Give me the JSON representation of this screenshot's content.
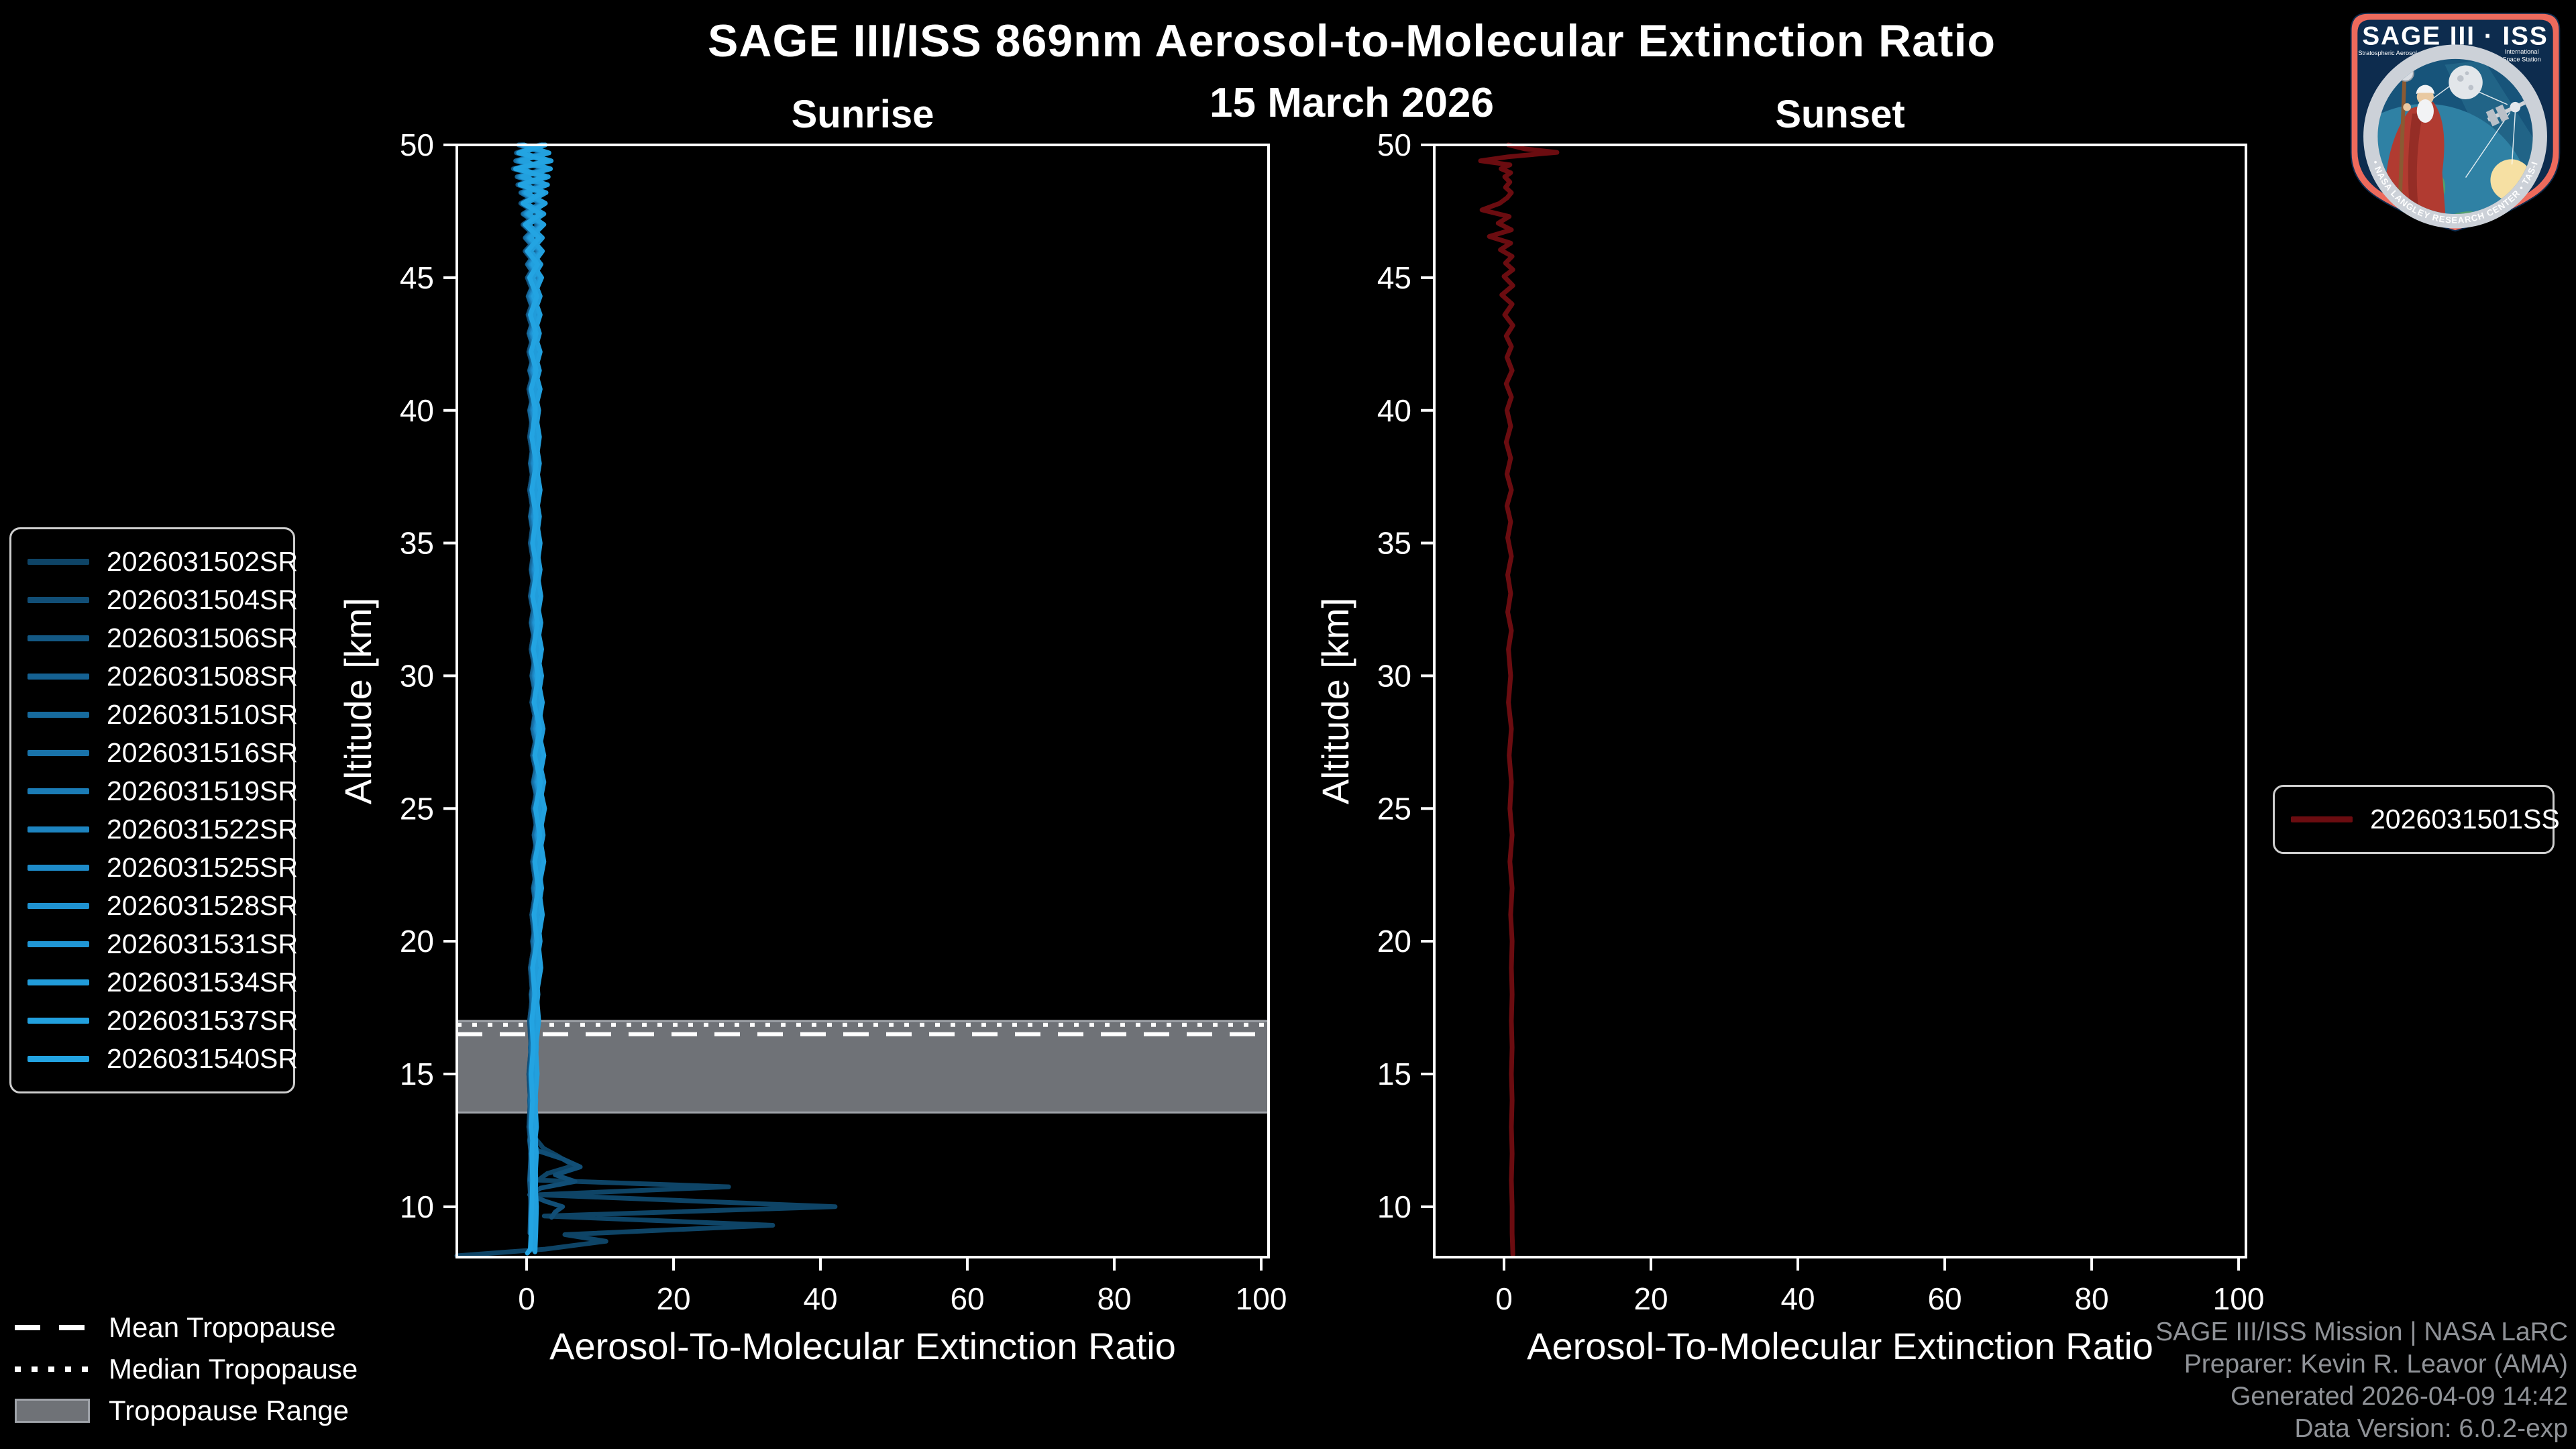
{
  "title": "SAGE III/ISS 869nm Aerosol-to-Molecular Extinction Ratio",
  "subtitle": "15 March 2026",
  "colors": {
    "background": "#000000",
    "axis": "#ffffff",
    "tropopause_band": "#6f7277",
    "tropopause_band_edge": "#9fa3a9",
    "sunrise_dark": "#0e4466",
    "sunrise_bright": "#23a4e2",
    "sunset_line": "#6b0c10",
    "muted_text": "#8f9297"
  },
  "tropopause_legend": [
    {
      "label": "Mean Tropopause",
      "style": "dashed"
    },
    {
      "label": "Median Tropopause",
      "style": "dotted"
    },
    {
      "label": "Tropopause Range",
      "style": "band"
    }
  ],
  "attribution": {
    "line1": "SAGE III/ISS Mission | NASA LaRC",
    "line2": "Preparer: Kevin R. Leavor (AMA)",
    "line3": "Generated 2026-04-09 14:42",
    "line4": "Data Version: 6.0.2-exp"
  },
  "logo": {
    "title": "SAGE III · ISS",
    "subtitle_left": "Stratospheric Aerosol and Gas Experiment III",
    "subtitle_right_1": "International",
    "subtitle_right_2": "Space Station",
    "ring_text": "BALL • NASA LANGLEY RESEARCH CENTER • TAS-I • ESA"
  },
  "chart_data": [
    {
      "type": "line",
      "panel": "sunrise",
      "title": "Sunrise",
      "xlabel": "Aerosol-To-Molecular Extinction Ratio",
      "ylabel": "Altitude [km]",
      "xlim": [
        -9.5,
        101
      ],
      "ylim": [
        8.1,
        50
      ],
      "xticks": [
        0,
        20,
        40,
        60,
        80,
        100
      ],
      "yticks": [
        10,
        15,
        20,
        25,
        30,
        35,
        40,
        45,
        50
      ],
      "grid": false,
      "legend_position": "outside-left",
      "tropopause": {
        "mean": 16.5,
        "median": 16.85,
        "range": [
          13.55,
          17.0
        ]
      },
      "bases": {
        "A": [
          [
            50,
            1.8
          ],
          [
            49.7,
            -1.4
          ],
          [
            49.4,
            2.6
          ],
          [
            49.1,
            -1.8
          ],
          [
            48.8,
            2.2
          ],
          [
            48.5,
            -1.2
          ],
          [
            48.2,
            1.9
          ],
          [
            47.8,
            -0.8
          ],
          [
            47.4,
            1.6
          ],
          [
            47,
            -0.5
          ],
          [
            46.5,
            1.4
          ],
          [
            46,
            -0.2
          ],
          [
            45.5,
            1.2
          ],
          [
            45,
            0.1
          ],
          [
            44.3,
            1.1
          ],
          [
            43.6,
            0.2
          ],
          [
            42.9,
            1.0
          ],
          [
            42.2,
            0.3
          ],
          [
            41.5,
            1.0
          ],
          [
            40.8,
            0.3
          ],
          [
            40,
            0.9
          ],
          [
            39,
            0.4
          ],
          [
            38,
            1.0
          ],
          [
            37,
            0.4
          ],
          [
            36,
            1.0
          ],
          [
            35,
            0.5
          ],
          [
            34,
            1.1
          ],
          [
            33,
            0.5
          ],
          [
            32,
            1.2
          ],
          [
            31,
            0.6
          ],
          [
            30,
            1.3
          ],
          [
            29,
            0.7
          ],
          [
            28,
            1.5
          ],
          [
            27,
            0.8
          ],
          [
            26,
            1.6
          ],
          [
            25,
            0.9
          ],
          [
            24,
            1.5
          ],
          [
            23,
            0.8
          ],
          [
            22,
            1.3
          ],
          [
            21,
            0.7
          ],
          [
            20,
            1.1
          ],
          [
            19,
            0.5
          ],
          [
            18,
            0.8
          ],
          [
            17,
            0.4
          ],
          [
            16,
            0.6
          ],
          [
            15,
            0.3
          ],
          [
            14,
            0.5
          ],
          [
            13,
            0.3
          ],
          [
            12.5,
            0.5
          ],
          [
            12,
            0.4
          ],
          [
            11,
            0.5
          ],
          [
            10,
            0.4
          ],
          [
            9,
            0.3
          ],
          [
            8.4,
            0.2
          ]
        ],
        "B": [
          [
            50,
            -1.2
          ],
          [
            49.7,
            2.2
          ],
          [
            49.4,
            -1.6
          ],
          [
            49.1,
            2.4
          ],
          [
            48.8,
            -1.4
          ],
          [
            48.5,
            2.0
          ],
          [
            48.2,
            -0.9
          ],
          [
            47.8,
            1.7
          ],
          [
            47.4,
            -0.6
          ],
          [
            47,
            1.5
          ],
          [
            46.5,
            -0.3
          ],
          [
            46,
            1.3
          ],
          [
            45.5,
            0.0
          ],
          [
            45,
            1.2
          ],
          [
            44.3,
            0.1
          ],
          [
            43.6,
            1.0
          ],
          [
            42.9,
            0.2
          ],
          [
            42.2,
            1.0
          ],
          [
            41.5,
            0.3
          ],
          [
            40.8,
            1.0
          ],
          [
            40,
            0.3
          ],
          [
            39,
            0.9
          ],
          [
            38,
            0.4
          ],
          [
            37,
            1.0
          ],
          [
            36,
            0.4
          ],
          [
            35,
            1.0
          ],
          [
            34,
            0.5
          ],
          [
            33,
            1.1
          ],
          [
            32,
            0.5
          ],
          [
            31,
            1.2
          ],
          [
            30,
            0.6
          ],
          [
            29,
            1.3
          ],
          [
            28,
            0.7
          ],
          [
            27,
            1.5
          ],
          [
            26,
            0.8
          ],
          [
            25,
            1.6
          ],
          [
            24,
            0.9
          ],
          [
            23,
            1.5
          ],
          [
            22,
            0.8
          ],
          [
            21,
            1.3
          ],
          [
            20,
            0.7
          ],
          [
            19,
            1.1
          ],
          [
            18,
            0.5
          ],
          [
            17,
            0.8
          ],
          [
            16,
            0.4
          ],
          [
            15,
            0.6
          ],
          [
            14,
            0.3
          ],
          [
            13,
            0.5
          ],
          [
            12.5,
            0.3
          ],
          [
            12,
            0.5
          ],
          [
            11,
            0.3
          ],
          [
            10,
            0.5
          ],
          [
            9,
            0.4
          ],
          [
            8.3,
            0.3
          ]
        ]
      },
      "series": [
        {
          "name": "2026031502SR",
          "color": "#0e4466",
          "base": "A",
          "dx": 0,
          "end_alt": 13.0,
          "tail": [
            [
              12.6,
              1.1
            ],
            [
              12.2,
              2.3
            ],
            [
              11.9,
              4.3
            ],
            [
              11.55,
              6.4
            ],
            [
              11.25,
              2.8
            ],
            [
              11.0,
              1.6
            ],
            [
              10.75,
              27.5
            ],
            [
              10.45,
              1.4
            ],
            [
              10.0,
              42.0
            ],
            [
              9.65,
              2.4
            ],
            [
              9.3,
              33.5
            ],
            [
              8.95,
              5.2
            ],
            [
              8.7,
              10.8
            ],
            [
              8.4,
              2.5
            ],
            [
              8.15,
              -9.5
            ]
          ]
        },
        {
          "name": "2026031504SR",
          "color": "#114e76",
          "base": "A",
          "dx": 0,
          "end_alt": 12.5,
          "tail": [
            [
              12.1,
              1.6
            ],
            [
              11.8,
              4.9
            ],
            [
              11.5,
              7.3
            ],
            [
              11.2,
              3.9
            ],
            [
              10.95,
              6.6
            ],
            [
              10.7,
              1.9
            ],
            [
              10.45,
              0.4
            ],
            [
              10.2,
              2.6
            ],
            [
              10.0,
              4.9
            ],
            [
              9.8,
              3.9
            ],
            [
              9.6,
              3.4
            ]
          ]
        },
        {
          "name": "2026031506SR",
          "color": "#135884",
          "base": "B",
          "dx": 0.1,
          "end_alt": 9.0
        },
        {
          "name": "2026031508SR",
          "color": "#156192",
          "base": "A",
          "dx": 0.15,
          "end_alt": 8.6
        },
        {
          "name": "2026031510SR",
          "color": "#176b9e",
          "base": "B",
          "dx": 0.2,
          "end_alt": 10.3
        },
        {
          "name": "2026031516SR",
          "color": "#1973aa",
          "base": "A",
          "dx": 0.3,
          "end_alt": 8.5
        },
        {
          "name": "2026031519SR",
          "color": "#1b7cb6",
          "base": "B",
          "dx": 0.4,
          "end_alt": 9.3
        },
        {
          "name": "2026031522SR",
          "color": "#1d84c0",
          "base": "A",
          "dx": 0.5,
          "end_alt": 8.4
        },
        {
          "name": "2026031525SR",
          "color": "#1e8bc9",
          "base": "B",
          "dx": 0.55,
          "end_alt": 11.2
        },
        {
          "name": "2026031528SR",
          "color": "#1f92d1",
          "base": "A",
          "dx": 0.6,
          "end_alt": 8.4
        },
        {
          "name": "2026031531SR",
          "color": "#2097d6",
          "base": "B",
          "dx": 0.7,
          "end_alt": 9.9
        },
        {
          "name": "2026031534SR",
          "color": "#219cda",
          "base": "A",
          "dx": 0.75,
          "end_alt": 8.4
        },
        {
          "name": "2026031537SR",
          "color": "#22a0de",
          "base": "B",
          "dx": 0.85,
          "end_alt": 8.3
        },
        {
          "name": "2026031540SR",
          "color": "#23a4e2",
          "base": "A",
          "dx": 0.3,
          "end_alt": 8.4,
          "tail": [
            [
              8.25,
              0.1
            ]
          ]
        }
      ]
    },
    {
      "type": "line",
      "panel": "sunset",
      "title": "Sunset",
      "xlabel": "Aerosol-To-Molecular Extinction Ratio",
      "ylabel": "Altitude [km]",
      "xlim": [
        -9.5,
        101
      ],
      "ylim": [
        8.1,
        50
      ],
      "xticks": [
        0,
        20,
        40,
        60,
        80,
        100
      ],
      "yticks": [
        10,
        15,
        20,
        25,
        30,
        35,
        40,
        45,
        50
      ],
      "grid": false,
      "legend_position": "outside-right",
      "series": [
        {
          "name": "2026031501SS",
          "color": "#6b0c10",
          "points": [
            [
              50,
              0.6
            ],
            [
              49.85,
              2.8
            ],
            [
              49.72,
              7.2
            ],
            [
              49.55,
              0.5
            ],
            [
              49.4,
              -3.2
            ],
            [
              49.25,
              0.8
            ],
            [
              49.1,
              -0.4
            ],
            [
              48.95,
              0.9
            ],
            [
              48.8,
              0.1
            ],
            [
              48.6,
              0.8
            ],
            [
              48.4,
              0.2
            ],
            [
              48.2,
              1.0
            ],
            [
              48.0,
              0.4
            ],
            [
              47.8,
              -0.6
            ],
            [
              47.55,
              -3.0
            ],
            [
              47.3,
              0.7
            ],
            [
              47.05,
              -0.8
            ],
            [
              46.8,
              1.0
            ],
            [
              46.55,
              -2.0
            ],
            [
              46.3,
              0.9
            ],
            [
              46.05,
              -0.5
            ],
            [
              45.8,
              1.1
            ],
            [
              45.55,
              0.2
            ],
            [
              45.3,
              1.2
            ],
            [
              45.05,
              0.0
            ],
            [
              44.7,
              1.2
            ],
            [
              44.35,
              -0.3
            ],
            [
              44.0,
              1.1
            ],
            [
              43.6,
              0.1
            ],
            [
              43.2,
              1.2
            ],
            [
              42.8,
              0.3
            ],
            [
              42.4,
              1.0
            ],
            [
              42.0,
              0.4
            ],
            [
              41.5,
              1.1
            ],
            [
              41.0,
              0.3
            ],
            [
              40.5,
              1.0
            ],
            [
              40.0,
              0.4
            ],
            [
              39.4,
              0.9
            ],
            [
              38.8,
              0.3
            ],
            [
              38.2,
              0.9
            ],
            [
              37.6,
              0.4
            ],
            [
              37.0,
              1.0
            ],
            [
              36.4,
              0.4
            ],
            [
              35.8,
              0.9
            ],
            [
              35.2,
              0.5
            ],
            [
              34.5,
              1.0
            ],
            [
              33.8,
              0.5
            ],
            [
              33.1,
              0.9
            ],
            [
              32.4,
              0.5
            ],
            [
              31.7,
              1.0
            ],
            [
              31.0,
              0.6
            ],
            [
              30.0,
              0.9
            ],
            [
              29.0,
              0.6
            ],
            [
              28.0,
              1.0
            ],
            [
              27.0,
              0.7
            ],
            [
              26.0,
              1.0
            ],
            [
              25.0,
              0.8
            ],
            [
              24.0,
              1.1
            ],
            [
              23.0,
              0.8
            ],
            [
              22.0,
              1.1
            ],
            [
              21.0,
              0.9
            ],
            [
              20.0,
              1.1
            ],
            [
              19.0,
              1.0
            ],
            [
              18.0,
              1.1
            ],
            [
              17.0,
              1.0
            ],
            [
              16.0,
              1.1
            ],
            [
              15.0,
              1.0
            ],
            [
              14.0,
              1.1
            ],
            [
              13.0,
              1.0
            ],
            [
              12.0,
              1.1
            ],
            [
              11.0,
              1.0
            ],
            [
              10.0,
              1.1
            ],
            [
              9.0,
              1.1
            ],
            [
              8.2,
              1.2
            ]
          ]
        }
      ]
    }
  ]
}
